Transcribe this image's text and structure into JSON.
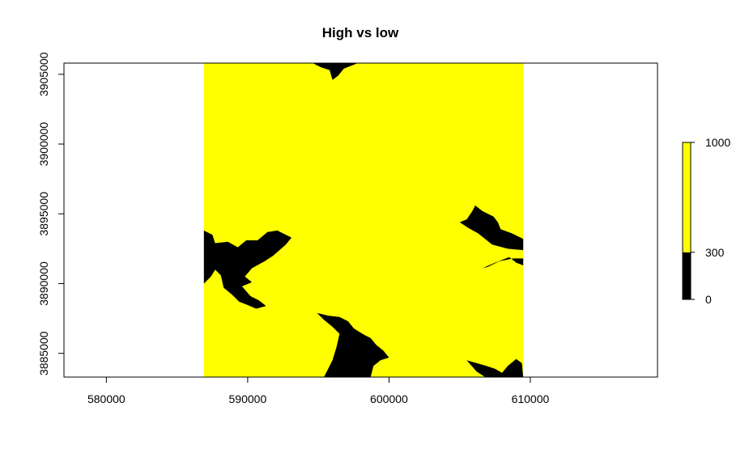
{
  "chart_data": {
    "type": "heatmap",
    "title": "High vs low",
    "xlabel": "",
    "ylabel": "",
    "xlim": [
      577000,
      619000
    ],
    "ylim": [
      3883300,
      3905800
    ],
    "x_ticks": [
      580000,
      590000,
      600000,
      610000
    ],
    "y_ticks": [
      3885000,
      3890000,
      3895000,
      3900000,
      3905000
    ],
    "x_tick_labels": [
      "580000",
      "590000",
      "600000",
      "610000"
    ],
    "y_tick_labels": [
      "3885000",
      "3890000",
      "3895000",
      "3900000",
      "3905000"
    ],
    "raster_extent": {
      "xmin": 586900,
      "xmax": 609500,
      "ymin": 3883300,
      "ymax": 3905800
    },
    "legend": {
      "placement": "right",
      "breaks": [
        0,
        300,
        1000
      ],
      "break_labels": [
        "0",
        "300",
        "1000"
      ],
      "classes": [
        {
          "from": 0,
          "to": 300,
          "color": "#000000"
        },
        {
          "from": 300,
          "to": 1000,
          "color": "#FFFF00"
        }
      ]
    },
    "colors": {
      "high": "#FFFF00",
      "low": "#000000"
    },
    "low_regions": [
      {
        "name": "top-inlet",
        "points": [
          [
            594600,
            3905800
          ],
          [
            595200,
            3905500
          ],
          [
            595800,
            3905300
          ],
          [
            596000,
            3904600
          ],
          [
            596400,
            3904900
          ],
          [
            596800,
            3905400
          ],
          [
            597300,
            3905600
          ],
          [
            597800,
            3905800
          ]
        ]
      },
      {
        "name": "left-fjord",
        "points": [
          [
            586900,
            3893800
          ],
          [
            587500,
            3893500
          ],
          [
            587700,
            3892900
          ],
          [
            588600,
            3893000
          ],
          [
            589300,
            3892600
          ],
          [
            589900,
            3893100
          ],
          [
            590700,
            3893100
          ],
          [
            591400,
            3893700
          ],
          [
            592100,
            3893800
          ],
          [
            593100,
            3893300
          ],
          [
            592700,
            3892800
          ],
          [
            591800,
            3892000
          ],
          [
            591200,
            3891600
          ],
          [
            590300,
            3891100
          ],
          [
            589800,
            3890500
          ],
          [
            590300,
            3890100
          ],
          [
            589600,
            3889800
          ],
          [
            590200,
            3889100
          ],
          [
            590800,
            3888800
          ],
          [
            591300,
            3888400
          ],
          [
            590600,
            3888200
          ],
          [
            589900,
            3888500
          ],
          [
            589400,
            3888700
          ],
          [
            588900,
            3889200
          ],
          [
            588300,
            3889700
          ],
          [
            588100,
            3890600
          ],
          [
            587700,
            3891000
          ],
          [
            587400,
            3890500
          ],
          [
            586900,
            3890000
          ]
        ]
      },
      {
        "name": "right-upper-arm",
        "points": [
          [
            609500,
            3893200
          ],
          [
            608700,
            3893600
          ],
          [
            607900,
            3893900
          ],
          [
            607700,
            3894400
          ],
          [
            607400,
            3894800
          ],
          [
            606600,
            3895200
          ],
          [
            606100,
            3895600
          ],
          [
            605900,
            3895200
          ],
          [
            605500,
            3894600
          ],
          [
            605000,
            3894400
          ],
          [
            605600,
            3894000
          ],
          [
            606300,
            3893600
          ],
          [
            607300,
            3892800
          ],
          [
            608400,
            3892500
          ],
          [
            609500,
            3892400
          ]
        ]
      },
      {
        "name": "right-lower-arm",
        "points": [
          [
            609500,
            3891800
          ],
          [
            608800,
            3891800
          ],
          [
            607800,
            3891600
          ],
          [
            607000,
            3891200
          ],
          [
            606600,
            3891100
          ],
          [
            607500,
            3891500
          ],
          [
            608500,
            3891900
          ],
          [
            609000,
            3891500
          ],
          [
            609500,
            3891300
          ]
        ]
      },
      {
        "name": "bottom-center-inlet",
        "points": [
          [
            595400,
            3883300
          ],
          [
            596000,
            3884500
          ],
          [
            596300,
            3885500
          ],
          [
            596500,
            3886400
          ],
          [
            596000,
            3886900
          ],
          [
            595400,
            3887400
          ],
          [
            594900,
            3887900
          ],
          [
            595700,
            3887700
          ],
          [
            596500,
            3887600
          ],
          [
            597100,
            3887300
          ],
          [
            597500,
            3886800
          ],
          [
            597800,
            3886600
          ],
          [
            598300,
            3886300
          ],
          [
            598700,
            3886100
          ],
          [
            599100,
            3885600
          ],
          [
            599600,
            3885200
          ],
          [
            600000,
            3884700
          ],
          [
            599400,
            3884500
          ],
          [
            598900,
            3884100
          ],
          [
            598700,
            3883300
          ]
        ]
      },
      {
        "name": "bottom-right-inlet",
        "points": [
          [
            605500,
            3884500
          ],
          [
            606200,
            3884300
          ],
          [
            606900,
            3884100
          ],
          [
            607500,
            3883900
          ],
          [
            608000,
            3883600
          ],
          [
            608400,
            3884100
          ],
          [
            609000,
            3884600
          ],
          [
            609400,
            3884300
          ],
          [
            609500,
            3883300
          ],
          [
            606800,
            3883300
          ],
          [
            606200,
            3883700
          ]
        ]
      }
    ]
  }
}
